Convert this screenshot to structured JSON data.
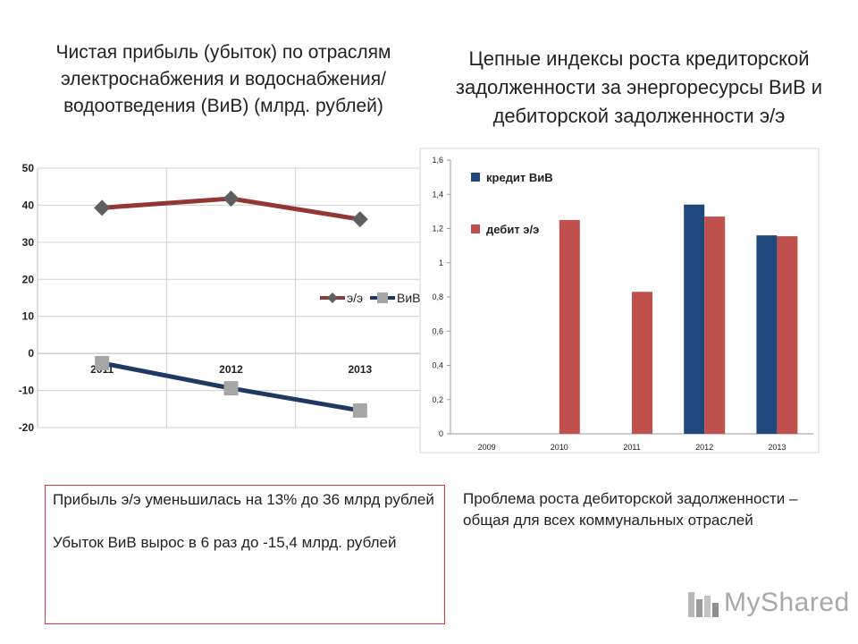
{
  "slide": {
    "title_left": "Чистая прибыль (убыток) по отраслям электроснабжения и водоснабжения/ водоотведения (ВиВ) (млрд. рублей)",
    "title_right": "Цепные индексы роста кредиторской задолженности за энергоресурсы ВиВ и дебиторской задолженности э/э",
    "note_left_1": "Прибыль э/э уменьшилась на 13% до 36 млрд рублей",
    "note_left_2": "Убыток ВиВ вырос в 6 раз до -15,4 млрд. рублей",
    "note_right": "Проблема роста дебиторской задолженности – общая для всех коммунальных отраслей",
    "logo_text": "MyShared",
    "colors": {
      "red_series": "#943634",
      "blue_series": "#1f3864",
      "bar_blue": "#1f497d",
      "bar_red": "#c0504d",
      "marker_grey": "#a6a6a6",
      "note_border": "#e03a3a"
    }
  },
  "chart_data": [
    {
      "type": "line",
      "x": [
        "2011",
        "2012",
        "2013"
      ],
      "ylim": [
        -20,
        50
      ],
      "ytick_labels": [
        "50",
        "40",
        "30",
        "20",
        "10",
        "0",
        "-10",
        "-20"
      ],
      "xtick_labels": [
        "2011",
        "2012",
        "2013"
      ],
      "series": [
        {
          "name": "э/э",
          "values": [
            39.3,
            41.8,
            36.2
          ],
          "color": "#943634",
          "marker": "diamond"
        },
        {
          "name": "ВиВ",
          "values": [
            -2.6,
            -9.4,
            -15.4
          ],
          "color": "#1f3864",
          "marker": "square"
        }
      ],
      "legend_position": "right",
      "grid": true
    },
    {
      "type": "bar",
      "categories": [
        "2009",
        "2010",
        "2011",
        "2012",
        "2013"
      ],
      "ylim": [
        0,
        1.6
      ],
      "ytick_labels": [
        "1,6",
        "1,4",
        "1,2",
        "1",
        "0,8",
        "0,6",
        "0,4",
        "0,2",
        "0"
      ],
      "series": [
        {
          "name": "кредит ВиВ",
          "values": [
            null,
            null,
            null,
            1.34,
            1.16
          ],
          "color": "#1f497d"
        },
        {
          "name": "дебит э/э",
          "values": [
            null,
            1.25,
            0.83,
            1.27,
            1.155
          ],
          "color": "#c0504d"
        }
      ],
      "legend_position": "top-left",
      "grid": false
    }
  ]
}
